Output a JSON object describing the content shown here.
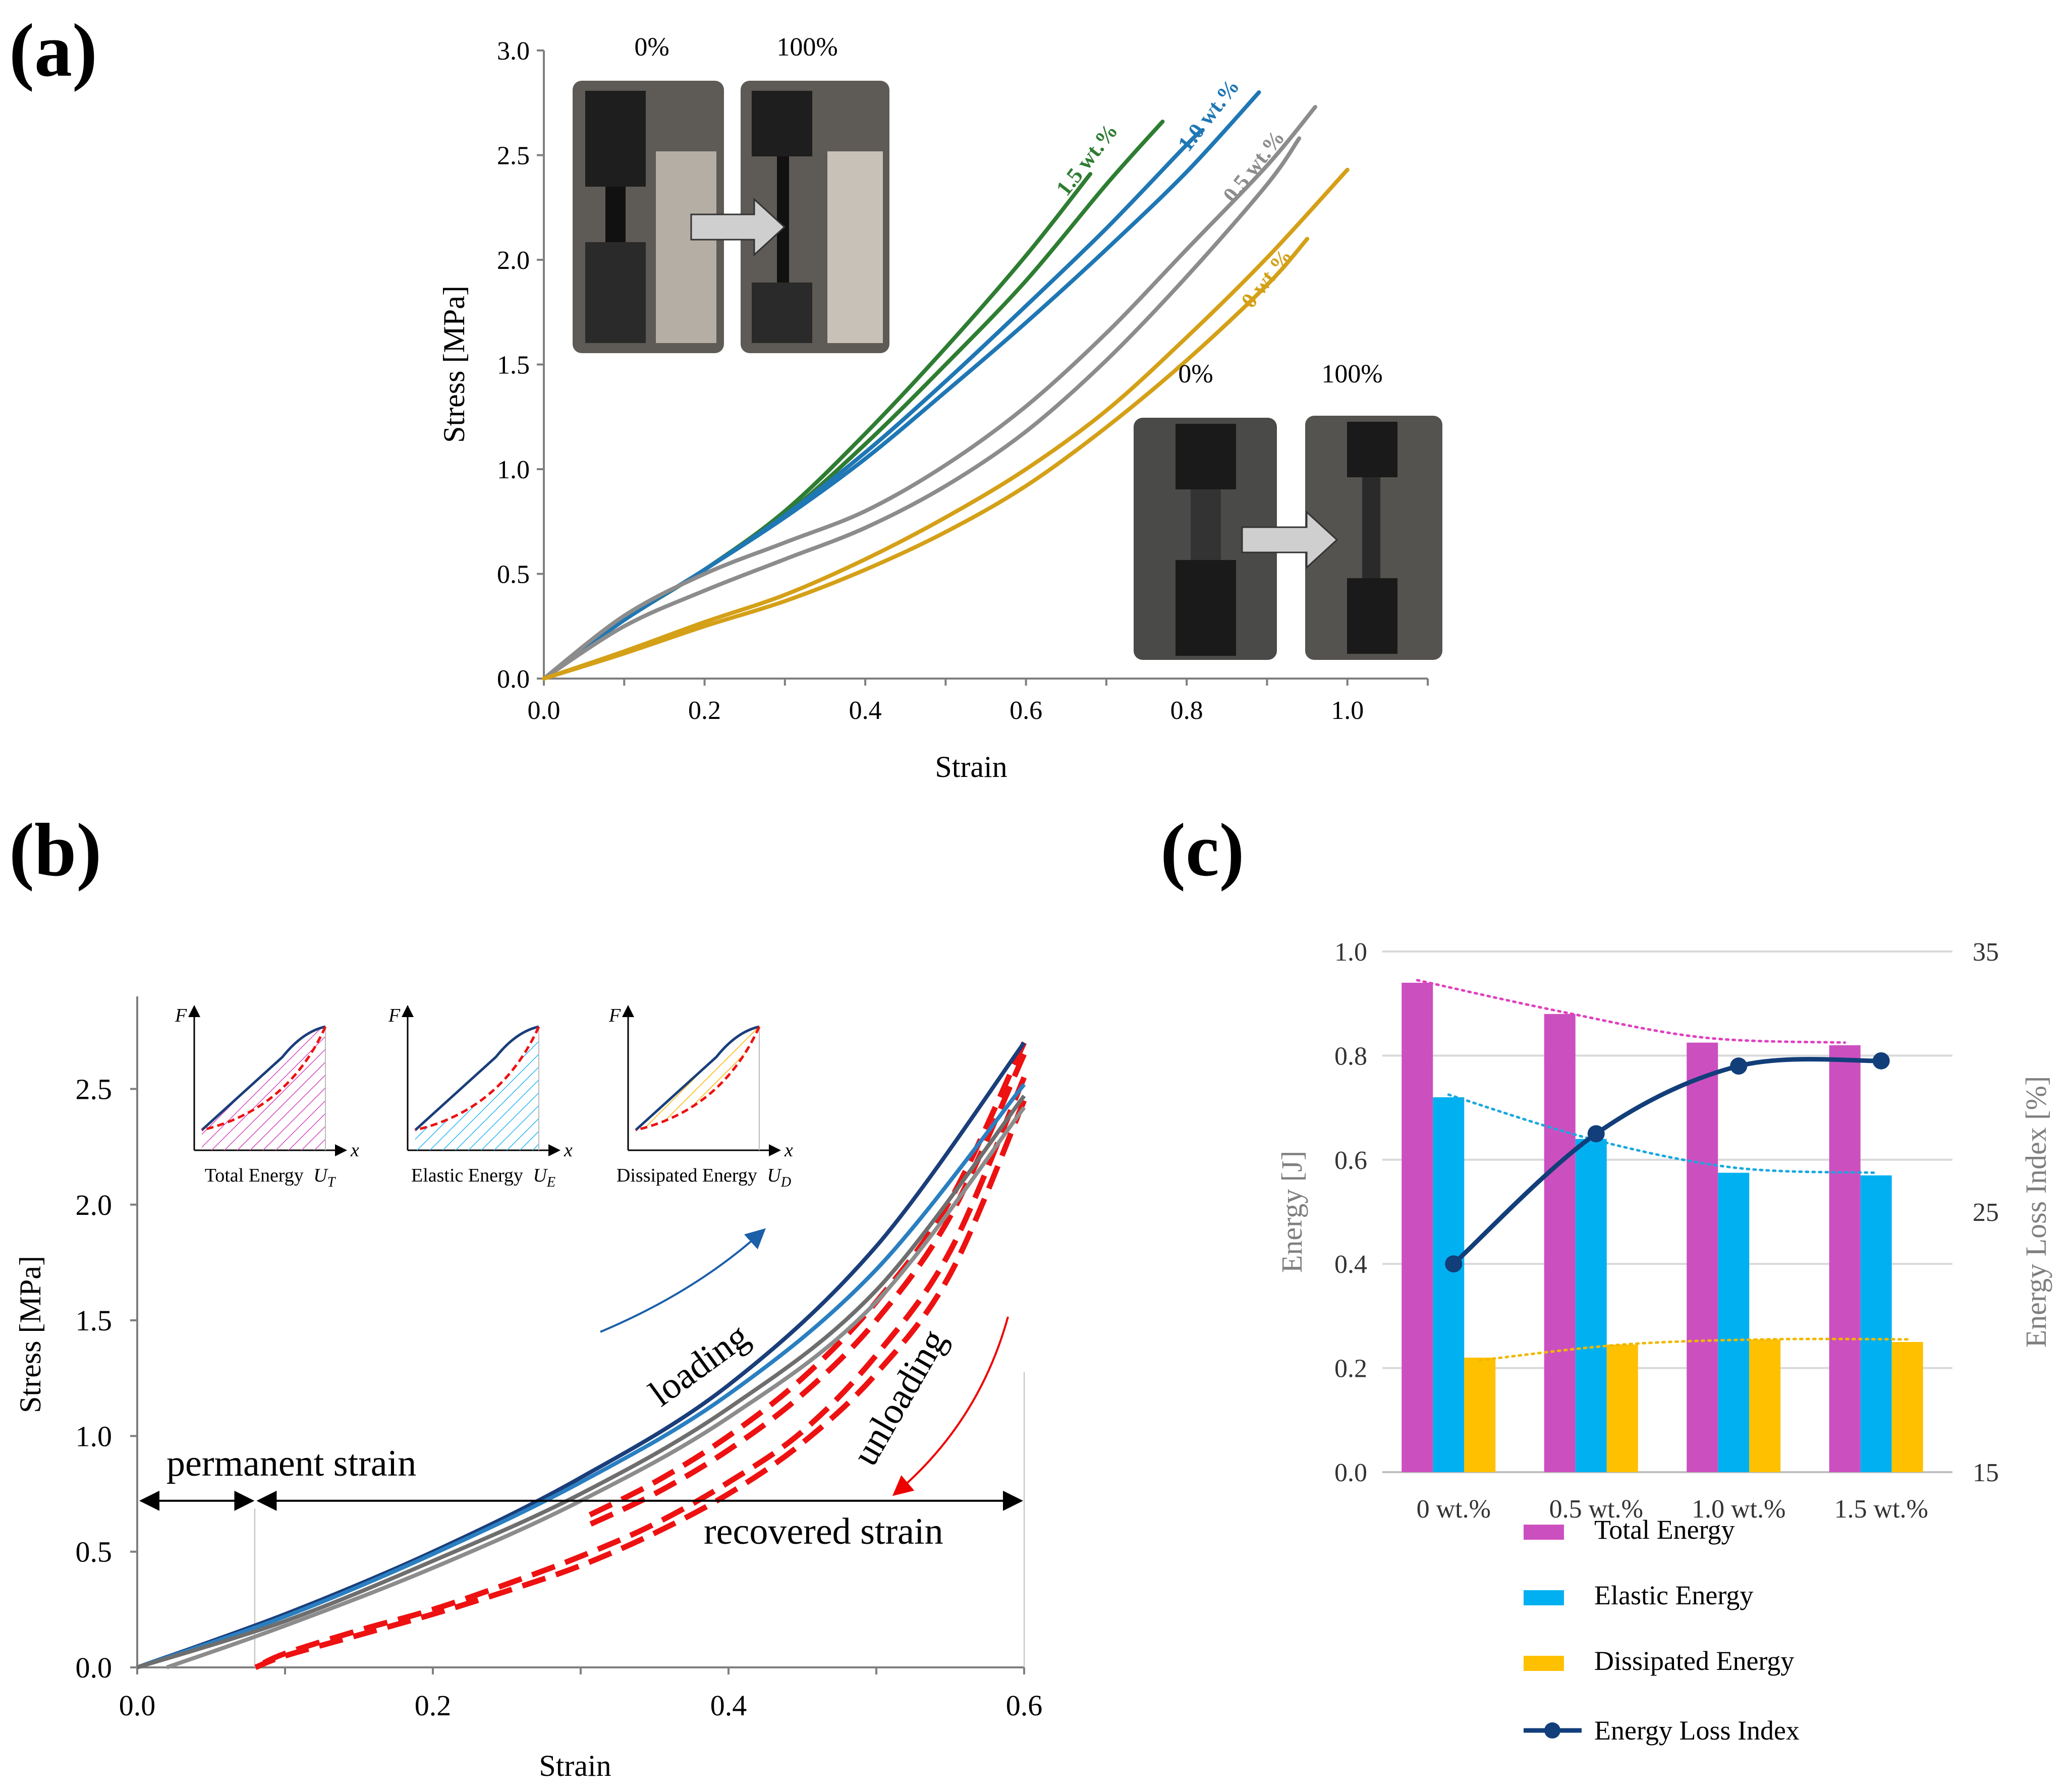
{
  "panels": {
    "a": "(a)",
    "b": "(b)",
    "c": "(c)"
  },
  "chart_data": [
    {
      "id": "a",
      "type": "line",
      "xlabel": "Strain",
      "ylabel": "Stress [MPa]",
      "xlim": [
        0,
        1.1
      ],
      "ylim": [
        0,
        3.0
      ],
      "xticks": [
        "0.0",
        "0.2",
        "0.4",
        "0.6",
        "0.8",
        "1.0"
      ],
      "yticks": [
        "0.0",
        "0.5",
        "1.0",
        "1.5",
        "2.0",
        "2.5",
        "3.0"
      ],
      "photo_labels_top": [
        "0%",
        "100%"
      ],
      "photo_labels_bottom": [
        "0%",
        "100%"
      ],
      "series": [
        {
          "name": "1.5 wt.%",
          "color": "#2e7d32",
          "curves": [
            {
              "x": [
                0,
                0.1,
                0.2,
                0.3,
                0.4,
                0.5,
                0.6,
                0.68
              ],
              "y": [
                0,
                0.28,
                0.52,
                0.8,
                1.17,
                1.58,
                2.02,
                2.41
              ]
            },
            {
              "x": [
                0,
                0.1,
                0.2,
                0.3,
                0.4,
                0.5,
                0.6,
                0.7,
                0.77
              ],
              "y": [
                0,
                0.28,
                0.52,
                0.78,
                1.12,
                1.5,
                1.9,
                2.36,
                2.66
              ]
            }
          ]
        },
        {
          "name": "1.0 wt.%",
          "color": "#1f77b4",
          "curves": [
            {
              "x": [
                0,
                0.1,
                0.2,
                0.3,
                0.4,
                0.5,
                0.6,
                0.7,
                0.8,
                0.82
              ],
              "y": [
                0,
                0.28,
                0.52,
                0.78,
                1.08,
                1.42,
                1.78,
                2.15,
                2.55,
                2.62
              ]
            },
            {
              "x": [
                0,
                0.1,
                0.2,
                0.3,
                0.4,
                0.5,
                0.6,
                0.7,
                0.8,
                0.89
              ],
              "y": [
                0,
                0.28,
                0.52,
                0.77,
                1.05,
                1.37,
                1.7,
                2.05,
                2.42,
                2.8
              ]
            }
          ]
        },
        {
          "name": "0.5 wt.%",
          "color": "#8c8c8c",
          "curves": [
            {
              "x": [
                0,
                0.1,
                0.2,
                0.3,
                0.4,
                0.5,
                0.6,
                0.7,
                0.8,
                0.9,
                0.96
              ],
              "y": [
                0,
                0.3,
                0.5,
                0.65,
                0.8,
                1.02,
                1.3,
                1.65,
                2.05,
                2.45,
                2.73
              ]
            },
            {
              "x": [
                0,
                0.1,
                0.2,
                0.3,
                0.4,
                0.5,
                0.6,
                0.7,
                0.8,
                0.9,
                0.94
              ],
              "y": [
                0,
                0.25,
                0.42,
                0.57,
                0.72,
                0.92,
                1.18,
                1.52,
                1.92,
                2.36,
                2.58
              ]
            }
          ]
        },
        {
          "name": "0 wt.%",
          "color": "#d4a017",
          "curves": [
            {
              "x": [
                0,
                0.1,
                0.2,
                0.3,
                0.4,
                0.5,
                0.6,
                0.7,
                0.8,
                0.9,
                1.0
              ],
              "y": [
                0,
                0.13,
                0.27,
                0.4,
                0.57,
                0.77,
                1.0,
                1.28,
                1.63,
                2.01,
                2.43
              ]
            },
            {
              "x": [
                0,
                0.1,
                0.2,
                0.3,
                0.4,
                0.5,
                0.6,
                0.7,
                0.8,
                0.9,
                0.95
              ],
              "y": [
                0,
                0.12,
                0.25,
                0.37,
                0.52,
                0.7,
                0.92,
                1.2,
                1.52,
                1.88,
                2.1
              ]
            }
          ]
        }
      ]
    },
    {
      "id": "b",
      "type": "line",
      "xlabel": "Strain",
      "ylabel": "Stress [MPa]",
      "xlim": [
        0,
        0.6
      ],
      "ylim": [
        0,
        2.9
      ],
      "xticks": [
        "0.0",
        "0.2",
        "0.4",
        "0.6"
      ],
      "yticks": [
        "0.0",
        "0.5",
        "1.0",
        "1.5",
        "2.0",
        "2.5"
      ],
      "loading": [
        {
          "color": "#1a3e7a",
          "x": [
            0,
            0.1,
            0.2,
            0.3,
            0.4,
            0.5,
            0.6
          ],
          "y": [
            0,
            0.23,
            0.5,
            0.82,
            1.22,
            1.82,
            2.7
          ]
        },
        {
          "color": "#2a7fc1",
          "x": [
            0,
            0.1,
            0.2,
            0.3,
            0.4,
            0.5,
            0.6
          ],
          "y": [
            0,
            0.22,
            0.49,
            0.8,
            1.18,
            1.72,
            2.52
          ]
        },
        {
          "color": "#6e6e6e",
          "x": [
            0,
            0.1,
            0.2,
            0.3,
            0.4,
            0.5,
            0.6
          ],
          "y": [
            0,
            0.2,
            0.46,
            0.75,
            1.12,
            1.63,
            2.47
          ]
        },
        {
          "color": "#8c8c8c",
          "x": [
            0.02,
            0.1,
            0.2,
            0.3,
            0.4,
            0.5,
            0.6
          ],
          "y": [
            0,
            0.18,
            0.43,
            0.72,
            1.08,
            1.58,
            2.42
          ]
        }
      ],
      "unloading": [
        {
          "x": [
            0.6,
            0.55,
            0.5,
            0.45,
            0.4,
            0.35,
            0.3
          ],
          "y": [
            2.7,
            2.02,
            1.58,
            1.25,
            1.0,
            0.8,
            0.64
          ]
        },
        {
          "x": [
            0.6,
            0.55,
            0.5,
            0.45,
            0.4,
            0.35,
            0.3
          ],
          "y": [
            2.65,
            1.95,
            1.5,
            1.18,
            0.94,
            0.75,
            0.6
          ]
        },
        {
          "x": [
            0.6,
            0.55,
            0.5,
            0.45,
            0.4,
            0.35,
            0.3,
            0.25,
            0.2,
            0.15,
            0.1,
            0.08
          ],
          "y": [
            2.55,
            1.8,
            1.35,
            1.02,
            0.8,
            0.62,
            0.48,
            0.36,
            0.25,
            0.16,
            0.06,
            0
          ]
        },
        {
          "x": [
            0.6,
            0.55,
            0.5,
            0.45,
            0.4,
            0.35,
            0.3,
            0.25,
            0.2,
            0.15,
            0.1,
            0.08
          ],
          "y": [
            2.45,
            1.7,
            1.27,
            0.97,
            0.75,
            0.58,
            0.44,
            0.33,
            0.23,
            0.14,
            0.05,
            0
          ]
        }
      ],
      "annotations": {
        "loading": "loading",
        "unloading": "unloading",
        "permanent": "permanent strain",
        "recovered": "recovered strain"
      },
      "permanent_strain": 0.08,
      "arrow_y": 0.72,
      "insets": [
        {
          "axis_f": "F",
          "axis_x": "x",
          "title": "Total Energy",
          "symbol": "U",
          "sub": "T",
          "hatch": "#d44bbf"
        },
        {
          "axis_f": "F",
          "axis_x": "x",
          "title": "Elastic Energy",
          "symbol": "U",
          "sub": "E",
          "hatch": "#29b6f6"
        },
        {
          "axis_f": "F",
          "axis_x": "x",
          "title": "Dissipated Energy",
          "symbol": "U",
          "sub": "D",
          "hatch": "#ffb300"
        }
      ]
    },
    {
      "id": "c",
      "type": "bar",
      "categories": [
        "0 wt.%",
        "0.5 wt.%",
        "1.0 wt.%",
        "1.5 wt.%"
      ],
      "ylabel": "Energy [J]",
      "y2label": "Energy Loss Index [%]",
      "ylim": [
        0,
        1.0
      ],
      "y2lim": [
        15,
        35
      ],
      "yticks": [
        "0.0",
        "0.2",
        "0.4",
        "0.6",
        "0.8",
        "1.0"
      ],
      "y2ticks": [
        "15",
        "25",
        "35"
      ],
      "series": [
        {
          "name": "Total Energy",
          "color": "#cc4fc0",
          "values": [
            0.94,
            0.88,
            0.825,
            0.82
          ]
        },
        {
          "name": "Elastic Energy",
          "color": "#00b0f0",
          "values": [
            0.72,
            0.64,
            0.575,
            0.57
          ]
        },
        {
          "name": "Dissipated Energy",
          "color": "#ffc000",
          "values": [
            0.22,
            0.245,
            0.255,
            0.25
          ]
        }
      ],
      "line": {
        "name": "Energy Loss Index",
        "color": "#123e7a",
        "values": [
          23.0,
          28.0,
          30.6,
          30.8
        ]
      },
      "trendlines": [
        {
          "color": "#e040c0",
          "values": [
            0.945,
            0.885,
            0.835,
            0.825
          ]
        },
        {
          "color": "#1aa8e0",
          "values": [
            0.725,
            0.64,
            0.585,
            0.575
          ]
        },
        {
          "color": "#f0b800",
          "values": [
            0.215,
            0.245,
            0.255,
            0.255
          ]
        }
      ]
    }
  ]
}
